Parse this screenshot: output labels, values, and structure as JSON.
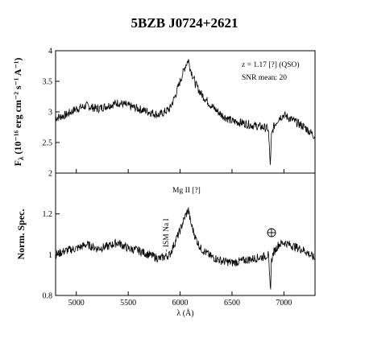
{
  "chart_data": [
    {
      "type": "line",
      "title": "5BZB J0724+2621",
      "ylabel_main": "F",
      "ylabel_sub": "λ",
      "ylabel_units": "(10⁻¹⁶ erg cm⁻² s⁻¹ A⁻¹)",
      "xlim": [
        4800,
        7300
      ],
      "ylim": [
        2,
        4
      ],
      "yticks": [
        "2",
        "2.5",
        "3",
        "3.5",
        "4"
      ],
      "annotations": [
        "z = 1.17 [?] (QSO)",
        "SNR mean: 20"
      ],
      "series": [
        {
          "x": [
            4800,
            4900,
            5000,
            5100,
            5200,
            5300,
            5400,
            5500,
            5600,
            5700,
            5800,
            5850,
            5900,
            5950,
            6000,
            6050,
            6080,
            6100,
            6150,
            6200,
            6300,
            6400,
            6500,
            6600,
            6700,
            6800,
            6850,
            6870,
            6880,
            6900,
            6950,
            7000,
            7050,
            7100,
            7200,
            7300
          ],
          "y": [
            2.9,
            2.95,
            3.05,
            3.1,
            3.05,
            3.1,
            3.15,
            3.1,
            3.05,
            3.0,
            2.95,
            3.0,
            3.05,
            3.25,
            3.5,
            3.75,
            3.85,
            3.7,
            3.45,
            3.3,
            3.1,
            2.95,
            2.85,
            2.82,
            2.78,
            2.75,
            2.72,
            2.1,
            2.6,
            2.75,
            2.9,
            2.95,
            2.9,
            2.85,
            2.75,
            2.6
          ]
        }
      ]
    },
    {
      "type": "line",
      "ylabel": "Norm. Spec.",
      "xlabel": "λ (Å)",
      "xlim": [
        4800,
        7300
      ],
      "ylim": [
        0.8,
        1.4
      ],
      "xticks": [
        "5000",
        "5500",
        "6000",
        "6500",
        "7000"
      ],
      "yticks": [
        "0.8",
        "1",
        "1.2"
      ],
      "annotations": [
        "Mg II [?]",
        "ISM Na I"
      ],
      "series": [
        {
          "x": [
            4800,
            4900,
            5000,
            5100,
            5200,
            5300,
            5400,
            5500,
            5600,
            5700,
            5800,
            5850,
            5900,
            5950,
            6000,
            6050,
            6080,
            6100,
            6150,
            6200,
            6300,
            6400,
            6500,
            6600,
            6700,
            6800,
            6850,
            6870,
            6880,
            6900,
            6950,
            7000,
            7050,
            7100,
            7200,
            7300
          ],
          "y": [
            1.0,
            1.02,
            1.03,
            1.05,
            1.03,
            1.04,
            1.06,
            1.03,
            1.02,
            1.0,
            0.98,
            0.99,
            1.0,
            1.06,
            1.12,
            1.19,
            1.22,
            1.16,
            1.08,
            1.03,
            0.99,
            0.97,
            0.96,
            0.97,
            0.98,
            0.99,
            1.0,
            0.82,
            0.97,
            1.01,
            1.05,
            1.06,
            1.05,
            1.04,
            1.02,
            0.98
          ]
        }
      ]
    }
  ]
}
